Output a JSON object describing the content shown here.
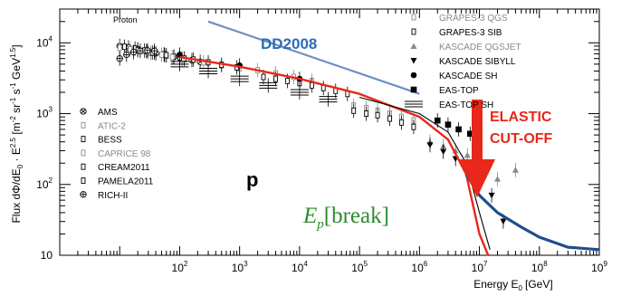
{
  "chart_data": {
    "type": "scatter",
    "panel_label": "Proton",
    "particle_label": "p",
    "xlabel": "Energy E",
    "xlabel_sub": "0",
    "xlabel_unit": "[GeV]",
    "ylabel": "Flux dΦ/dE",
    "ylabel_sub": "0",
    "ylabel_mid": "· E",
    "ylabel_exp": "2.5",
    "ylabel_unit": "[m",
    "ylabel_unit_rest": "sr",
    "ylabel_unit_rest2": "s",
    "ylabel_unit_rest3": "GeV",
    "ylabel_unit_exp": "1.5",
    "ylabel_unit_close": "]",
    "x_scale": "log",
    "y_scale": "log",
    "xlim": [
      1,
      1000000000
    ],
    "ylim": [
      10,
      30000
    ],
    "x_ticks": [
      "10",
      "10",
      "10",
      "10",
      "10",
      "10",
      "10",
      "10"
    ],
    "x_tick_exps": [
      "2",
      "3",
      "4",
      "5",
      "6",
      "7",
      "8",
      "9"
    ],
    "x_tick_values": [
      100,
      1000,
      10000,
      100000,
      1000000,
      10000000,
      100000000,
      1000000000
    ],
    "y_ticks": [
      "10",
      "10",
      "10",
      "10"
    ],
    "y_tick_exps": [
      "",
      "2",
      "3",
      "4"
    ],
    "y_tick_values": [
      10,
      100,
      1000,
      10000
    ],
    "annotations": {
      "dd2008": "DD2008",
      "elastic1": "ELASTIC",
      "elastic2": "CUT-OFF",
      "ep_break": "E",
      "ep_sub": "p",
      "ep_bracket": "[break]"
    },
    "colors": {
      "red_fit": "#e8281a",
      "blue_fit": "#1f4e8c",
      "dd2008_line": "#6b8fc7",
      "dd2008_text": "#2b6cb8",
      "arrow": "#e8281a",
      "ep_text": "#2e8b2e",
      "grey": "#8a8a8a"
    },
    "legend_left": [
      {
        "name": "AMS",
        "marker": "circle-x"
      },
      {
        "name": "ATIC-2",
        "marker": "box-grey"
      },
      {
        "name": "BESS",
        "marker": "box"
      },
      {
        "name": "CAPRICE 98",
        "marker": "box-grey"
      },
      {
        "name": "CREAM2011",
        "marker": "box"
      },
      {
        "name": "PAMELA2011",
        "marker": "box"
      },
      {
        "name": "RICH-II",
        "marker": "circle-plus"
      }
    ],
    "legend_right": [
      {
        "name": "GRAPES-3 QGS",
        "marker": "box-grey"
      },
      {
        "name": "GRAPES-3 SIB",
        "marker": "box"
      },
      {
        "name": "KASCADE QGSJET",
        "marker": "triangle-up-grey"
      },
      {
        "name": "KASCADE SIBYLL",
        "marker": "triangle-down"
      },
      {
        "name": "KASCADE SH",
        "marker": "circle"
      },
      {
        "name": "EAS-TOP",
        "marker": "square"
      },
      {
        "name": "EAS-TOP SH",
        "marker": "lines"
      }
    ],
    "series": [
      {
        "legend": "AMS",
        "x": [
          10,
          14,
          20,
          28,
          40,
          56,
          80,
          110,
          160,
          220
        ],
        "y": [
          9000,
          8600,
          8100,
          7600,
          7100,
          6700,
          6300,
          6000,
          5700,
          5400
        ]
      },
      {
        "legend": "ATIC-2",
        "x": [
          30,
          60,
          120,
          250,
          500,
          1000,
          2000,
          4000,
          8000,
          16000
        ],
        "y": [
          7400,
          6600,
          5900,
          5300,
          4800,
          4400,
          4100,
          3700,
          3300,
          2900
        ]
      },
      {
        "legend": "BESS",
        "x": [
          12,
          18,
          26,
          38,
          55,
          80,
          120
        ],
        "y": [
          8800,
          8300,
          7800,
          7300,
          6900,
          6400,
          6000
        ]
      },
      {
        "legend": "CAPRICE 98",
        "x": [
          10,
          15,
          22,
          33,
          50,
          75,
          110
        ],
        "y": [
          8500,
          8100,
          7700,
          7200,
          6800,
          6300,
          5900
        ]
      },
      {
        "legend": "CREAM2011",
        "x": [
          2500,
          4000,
          6300,
          10000,
          16000,
          25000,
          40000,
          63000
        ],
        "y": [
          3300,
          3100,
          2900,
          2700,
          2500,
          2300,
          2100,
          1900
        ]
      },
      {
        "legend": "PAMELA2011",
        "x": [
          20,
          35,
          60,
          100,
          170,
          300,
          500,
          900
        ],
        "y": [
          7900,
          7300,
          6700,
          6200,
          5800,
          5300,
          4900,
          4500
        ]
      },
      {
        "legend": "RICH-II",
        "x": [
          10,
          13,
          17,
          22,
          29,
          38
        ],
        "y": [
          6000,
          6800,
          7400,
          7700,
          7800,
          7700
        ]
      },
      {
        "legend": "GRAPES-3 QGS",
        "x": [
          80000,
          130000,
          200000,
          320000,
          500000,
          800000
        ],
        "y": [
          1300,
          1200,
          1100,
          1000,
          900,
          800
        ]
      },
      {
        "legend": "GRAPES-3 SIB",
        "x": [
          80000,
          130000,
          200000,
          320000,
          500000,
          800000
        ],
        "y": [
          1100,
          1000,
          950,
          850,
          750,
          650
        ]
      },
      {
        "legend": "KASCADE QGSJET",
        "x": [
          1500000,
          2500000,
          4000000,
          6300000,
          10000000,
          20000000,
          40000000
        ],
        "y": [
          400,
          350,
          300,
          260,
          200,
          120,
          160
        ]
      },
      {
        "legend": "KASCADE SIBYLL",
        "x": [
          1500000,
          2500000,
          4000000,
          6300000,
          10000000,
          16000000,
          25000000
        ],
        "y": [
          360,
          290,
          230,
          180,
          130,
          70,
          30
        ]
      },
      {
        "legend": "KASCADE SH",
        "x": [
          100,
          1000,
          10000
        ],
        "y": [
          6800,
          4800,
          3100
        ]
      },
      {
        "legend": "EAS-TOP",
        "x": [
          2000000,
          3000000,
          4500000,
          7000000,
          10000000
        ],
        "y": [
          800,
          700,
          600,
          520,
          450
        ]
      },
      {
        "legend": "EAS-TOP SH",
        "x": [
          100,
          300,
          1000,
          3000,
          10000,
          30000
        ],
        "y": [
          5000,
          4000,
          3100,
          2500,
          2000,
          1600
        ]
      }
    ],
    "fits": [
      {
        "kind": "red",
        "x": [
          100,
          1000,
          10000,
          100000,
          1000000,
          3000000,
          6000000,
          10000000,
          14000000
        ],
        "y": [
          6300,
          4600,
          3100,
          1900,
          900,
          430,
          140,
          20,
          10
        ]
      },
      {
        "kind": "blue",
        "x": [
          6000000,
          10000000,
          20000000,
          50000000,
          100000000,
          300000000,
          1000000000
        ],
        "y": [
          140,
          70,
          40,
          25,
          18,
          13,
          12
        ]
      },
      {
        "kind": "black",
        "x": [
          100000,
          1000000,
          3000000,
          6000000,
          10000000,
          15000000
        ],
        "y": [
          1700,
          1000,
          550,
          200,
          40,
          12
        ]
      },
      {
        "kind": "dd2008",
        "x": [
          300,
          1000000
        ],
        "y": [
          20000,
          1900
        ]
      }
    ]
  }
}
